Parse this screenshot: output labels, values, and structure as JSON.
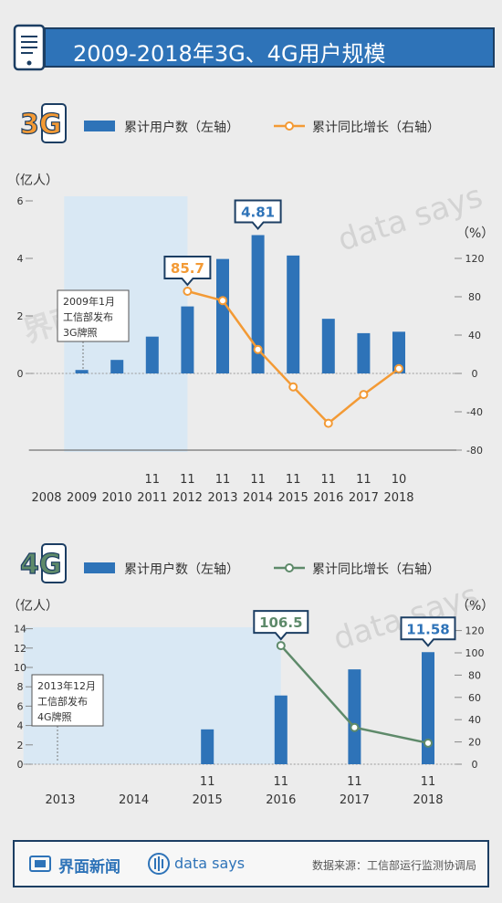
{
  "title": "2009-2018年3G、4G用户规模",
  "watermark": {
    "text": "data says",
    "logo_text": "界面新闻"
  },
  "footer": {
    "brand": "界面新闻",
    "data_says": "data says",
    "source": "数据来源：工信部运行监测协调局"
  },
  "colors": {
    "bar": "#2e73b8",
    "line3g": "#f39a35",
    "line4g": "#5e8a6a",
    "header": "#2e73b8",
    "shade": "#d9e8f4"
  },
  "chart_data": [
    {
      "type": "bar+line",
      "badge": "3G",
      "legend": {
        "bar": "累计用户数（左轴）",
        "line": "累计同比增长（右轴）",
        "position": "top"
      },
      "left_axis": {
        "unit": "（亿人）",
        "ticks": [
          0,
          2,
          4,
          6
        ],
        "ylim": [
          0,
          6
        ]
      },
      "right_axis": {
        "unit": "（%）",
        "ticks": [
          -80,
          -40,
          0,
          40,
          80,
          120
        ],
        "ylim": [
          -80,
          160
        ]
      },
      "years": [
        "2008",
        "2009",
        "2010",
        "2011",
        "2012",
        "2013",
        "2014",
        "2015",
        "2016",
        "2017",
        "2018"
      ],
      "months": [
        "",
        "",
        "",
        "11",
        "11",
        "11",
        "11",
        "11",
        "11",
        "11",
        "10"
      ],
      "bar_values": [
        0,
        0.12,
        0.47,
        1.28,
        2.33,
        3.98,
        4.81,
        4.1,
        1.9,
        1.4,
        1.45
      ],
      "growth": [
        null,
        null,
        null,
        null,
        85.7,
        76,
        25,
        -14,
        -52,
        -22,
        5
      ],
      "callouts": [
        {
          "text": "85.7",
          "series": "line",
          "index": 4
        },
        {
          "text": "4.81",
          "series": "bar",
          "index": 6
        }
      ],
      "annotation": [
        "2009年1月",
        "工信部发布",
        "3G牌照"
      ],
      "shaded": {
        "from": 2009,
        "to": 2012
      }
    },
    {
      "type": "bar+line",
      "badge": "4G",
      "legend": {
        "bar": "累计用户数（左轴）",
        "line": "累计同比增长（右轴）",
        "position": "top"
      },
      "left_axis": {
        "unit": "（亿人）",
        "ticks": [
          0,
          2,
          4,
          6,
          8,
          10,
          12,
          14
        ],
        "ylim": [
          0,
          14
        ]
      },
      "right_axis": {
        "unit": "（%）",
        "ticks": [
          0,
          20,
          40,
          60,
          80,
          100,
          120
        ],
        "ylim": [
          0,
          120
        ]
      },
      "years": [
        "2013",
        "2014",
        "2015",
        "2016",
        "2017",
        "2018"
      ],
      "months": [
        "",
        "",
        "11",
        "11",
        "11",
        "11"
      ],
      "bar_values": [
        0,
        0,
        3.6,
        7.1,
        9.8,
        11.58
      ],
      "growth": [
        null,
        null,
        null,
        106.5,
        33,
        19
      ],
      "callouts": [
        {
          "text": "106.5",
          "series": "line",
          "index": 3
        },
        {
          "text": "11.58",
          "series": "bar",
          "index": 5
        }
      ],
      "annotation": [
        "2013年12月",
        "工信部发布",
        "4G牌照"
      ],
      "shaded": {
        "from": 2013,
        "to": 2016
      }
    }
  ]
}
